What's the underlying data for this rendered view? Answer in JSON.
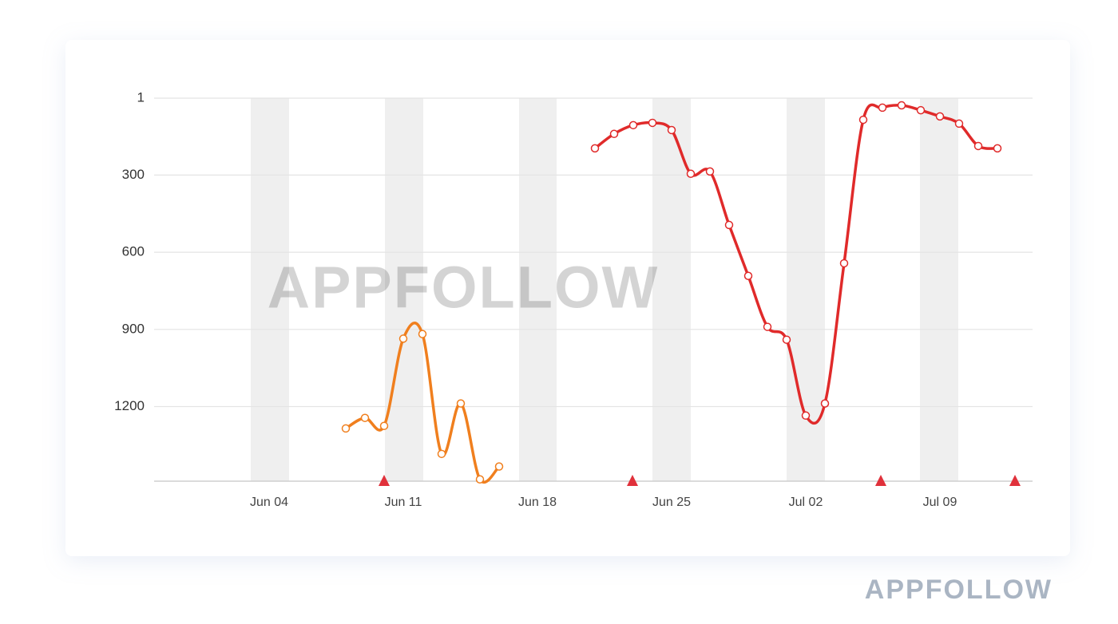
{
  "chart_data": {
    "type": "line",
    "categories": [
      null,
      null,
      null,
      null,
      null,
      null,
      "Jun 04",
      null,
      null,
      null,
      null,
      null,
      null,
      "Jun 11",
      null,
      null,
      null,
      null,
      null,
      null,
      "Jun 18",
      null,
      null,
      null,
      null,
      null,
      null,
      "Jun 25",
      null,
      null,
      null,
      null,
      null,
      null,
      "Jul 02",
      null,
      null,
      null,
      null,
      null,
      null,
      "Jul 09",
      null,
      null,
      null,
      null
    ],
    "series": [
      {
        "color": "#f07f1e",
        "values": [
          null,
          null,
          null,
          null,
          null,
          null,
          null,
          null,
          null,
          null,
          1285,
          1244,
          1275,
          936,
          918,
          1384,
          1188,
          1483,
          1433,
          null,
          null,
          null,
          null,
          null,
          null,
          null,
          null,
          null,
          null,
          null,
          null,
          null,
          null,
          null,
          null,
          null,
          null,
          null,
          null,
          null,
          null,
          null,
          null,
          null,
          null,
          null
        ]
      },
      {
        "color": "#e02a2a",
        "values": [
          null,
          null,
          null,
          null,
          null,
          null,
          null,
          null,
          null,
          null,
          null,
          null,
          null,
          null,
          null,
          null,
          null,
          null,
          null,
          null,
          null,
          null,
          null,
          196,
          140,
          106,
          97,
          125,
          295,
          286,
          494,
          692,
          890,
          940,
          1235,
          1188,
          643,
          85,
          38,
          29,
          48,
          72,
          100,
          187,
          196,
          null
        ]
      }
    ],
    "ylim": [
      1,
      1490
    ],
    "yticks": [
      1,
      300,
      600,
      900,
      1200
    ],
    "y_reversed": true,
    "grid": true,
    "watermark": "APPFOLLOW"
  },
  "brand": "APPFOLLOW"
}
